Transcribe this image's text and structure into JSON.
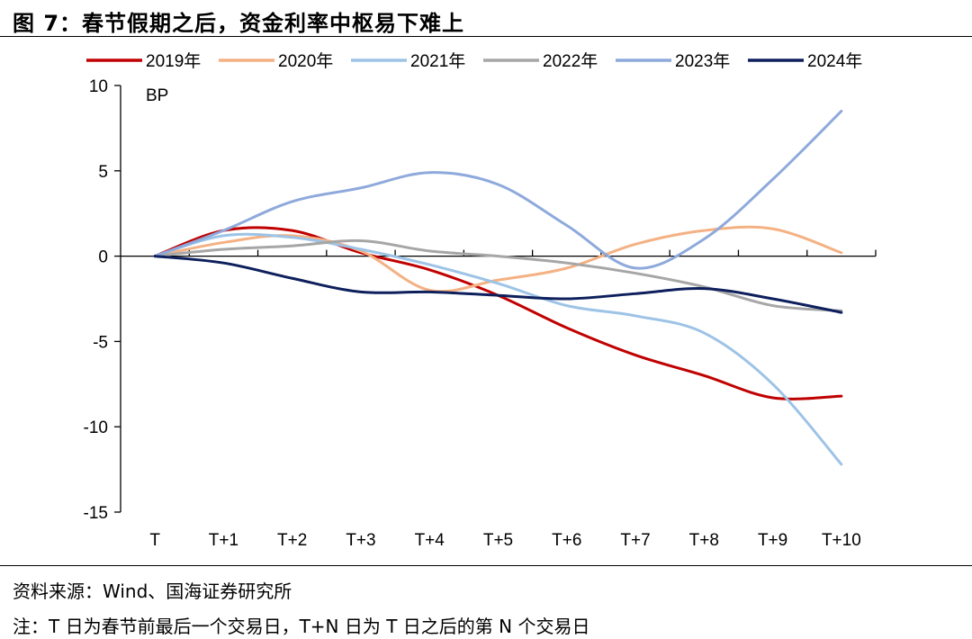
{
  "figure": {
    "title": "图 7：春节假期之后，资金利率中枢易下难上",
    "source": "资料来源：Wind、国海证券研究所",
    "note": "注：T 日为春节前最后一个交易日，T+N 日为 T 日之后的第 N 个交易日"
  },
  "chart_data": {
    "type": "line",
    "title": "",
    "xlabel": "",
    "ylabel": "BP",
    "unit": "BP",
    "categories": [
      "T",
      "T+1",
      "T+2",
      "T+3",
      "T+4",
      "T+5",
      "T+6",
      "T+7",
      "T+8",
      "T+9",
      "T+10"
    ],
    "ylim": [
      -15,
      10
    ],
    "yticks": [
      10,
      5,
      0,
      -5,
      -10,
      -15
    ],
    "grid": false,
    "legend_position": "top",
    "smooth": true,
    "series": [
      {
        "name": "2019年",
        "color": "#C00000",
        "values": [
          0,
          1.5,
          1.5,
          0.2,
          -0.8,
          -2.3,
          -4.2,
          -5.8,
          -7.0,
          -8.3,
          -8.2
        ]
      },
      {
        "name": "2020年",
        "color": "#F4B183",
        "values": [
          0,
          0.8,
          1.2,
          0.3,
          -2.0,
          -1.4,
          -0.7,
          0.7,
          1.5,
          1.6,
          0.2
        ]
      },
      {
        "name": "2021年",
        "color": "#9DC3E6",
        "values": [
          0,
          1.2,
          1.1,
          0.4,
          -0.5,
          -1.6,
          -2.9,
          -3.5,
          -4.5,
          -7.5,
          -12.2
        ]
      },
      {
        "name": "2022年",
        "color": "#A6A6A6",
        "values": [
          0,
          0.4,
          0.6,
          0.9,
          0.3,
          0,
          -0.4,
          -1.0,
          -1.8,
          -2.9,
          -3.2
        ]
      },
      {
        "name": "2023年",
        "color": "#8EA9DB",
        "values": [
          0,
          1.5,
          3.2,
          4.0,
          4.9,
          4.2,
          1.8,
          -0.7,
          1.0,
          4.5,
          8.5
        ]
      },
      {
        "name": "2024年",
        "color": "#0D1F5C",
        "values": [
          0,
          -0.4,
          -1.3,
          -2.1,
          -2.1,
          -2.3,
          -2.5,
          -2.2,
          -1.9,
          -2.5,
          -3.3
        ]
      }
    ]
  }
}
